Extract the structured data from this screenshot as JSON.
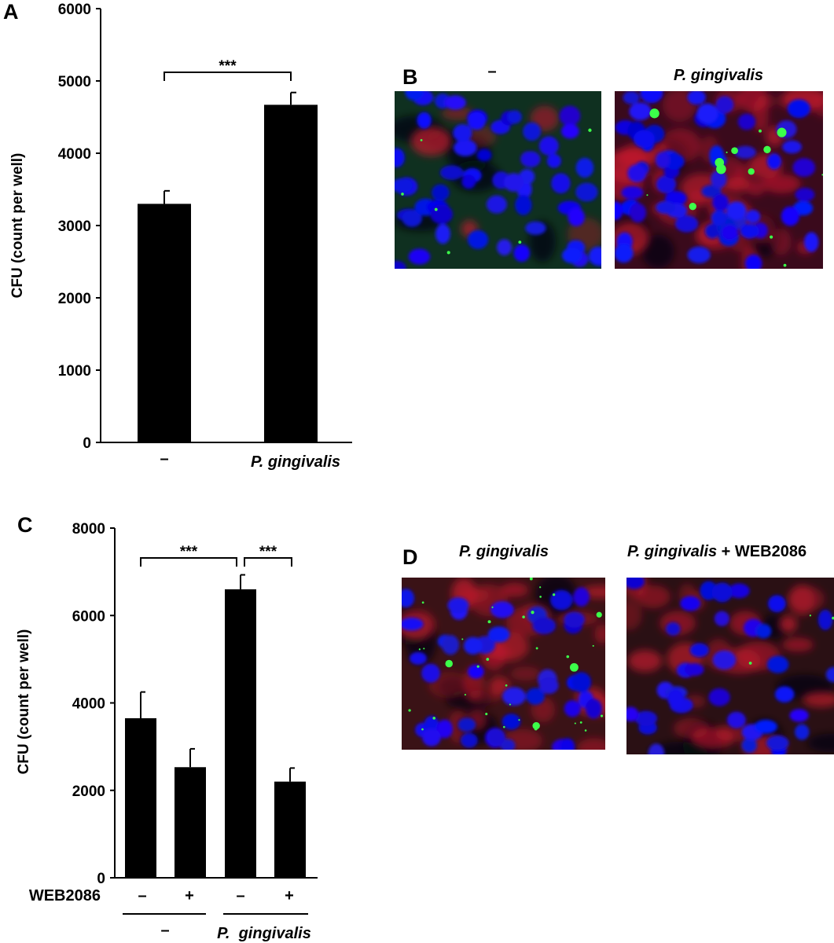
{
  "panels": {
    "A": {
      "letter": "A"
    },
    "B": {
      "letter": "B",
      "label_left": "–",
      "label_right": "P. gingivalis"
    },
    "C": {
      "letter": "C"
    },
    "D": {
      "letter": "D",
      "label_left": "P. gingivalis",
      "label_right_italic": "P. gingivalis",
      "label_right_suffix": " + WEB2086"
    }
  },
  "chart_data": [
    {
      "type": "bar",
      "panel": "A",
      "categories": [
        "–",
        "P. gingivalis"
      ],
      "series": [
        {
          "values": [
            3300,
            4670
          ],
          "errors": [
            180,
            170
          ]
        }
      ],
      "ylabel": "CFU (count per well)",
      "ylim": [
        0,
        6000
      ],
      "yticks": [
        0,
        1000,
        2000,
        3000,
        4000,
        5000,
        6000
      ],
      "annotations": [
        {
          "from": 0,
          "to": 1,
          "text": "***"
        }
      ],
      "grid": false
    },
    {
      "type": "bar",
      "panel": "C",
      "categories": [
        "–",
        "+",
        "–",
        "+"
      ],
      "row_label": "WEB2086",
      "groups": [
        {
          "label": "–",
          "italic": false,
          "span": [
            0,
            1
          ]
        },
        {
          "label": "P.  gingivalis",
          "italic": true,
          "span": [
            2,
            3
          ]
        }
      ],
      "series": [
        {
          "values": [
            3650,
            2530,
            6600,
            2200
          ],
          "errors": [
            600,
            420,
            330,
            310
          ]
        }
      ],
      "ylabel": "CFU (count per well)",
      "ylim": [
        0,
        8000
      ],
      "yticks": [
        0,
        2000,
        4000,
        6000,
        8000
      ],
      "annotations": [
        {
          "from": 0,
          "to": 2,
          "text": "***"
        },
        {
          "from": 2,
          "to": 3,
          "text": "***"
        }
      ],
      "grid": false
    }
  ]
}
